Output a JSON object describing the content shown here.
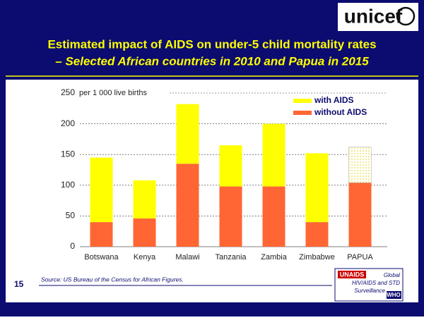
{
  "logo": "unicef",
  "chart_data": {
    "type": "stacked_bar",
    "title": "Estimated impact of AIDS on under-5 child mortality rates",
    "subtitle": "– Selected African countries in 2010 and Papua in 2015",
    "y_axis_label": "per 1 000 live births",
    "categories": [
      "Botswana",
      "Kenya",
      "Malawi",
      "Tanzania",
      "Zambia",
      "Zimbabwe",
      "PAPUA"
    ],
    "series": [
      {
        "name": "without AIDS",
        "color": "#ff6633",
        "values": [
          40,
          46,
          135,
          98,
          98,
          40,
          104
        ]
      },
      {
        "name": "with AIDS",
        "color": "#ffff00",
        "values": [
          105,
          62,
          97,
          67,
          102,
          112,
          58
        ],
        "fill_styles": [
          "solid",
          "solid",
          "solid",
          "solid",
          "solid",
          "solid",
          "dotted"
        ]
      }
    ],
    "ylim": [
      0,
      250
    ],
    "yticks": [
      0,
      50,
      100,
      150,
      200,
      250
    ],
    "grid": true,
    "legend": "upper right"
  },
  "footer": {
    "page_number": "15",
    "source": "Source: US Bureau of  the Census for African Figures."
  },
  "partner_logo": {
    "unaids": "UNAIDS",
    "text": [
      "Global",
      "HIV/AIDS and STD",
      "Surveillance"
    ],
    "who": "WHO"
  }
}
